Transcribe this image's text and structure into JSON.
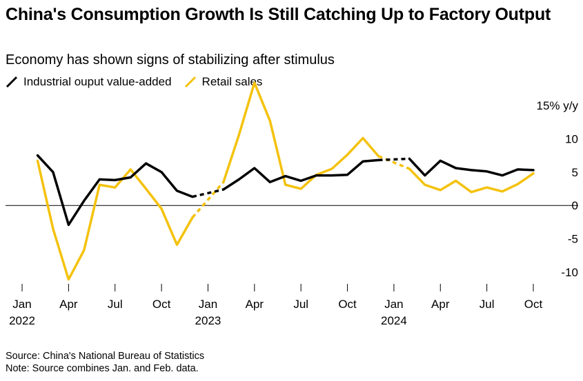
{
  "title": "China's Consumption Growth Is Still Catching Up to Factory Output",
  "subtitle": "Economy has shown signs of stabilizing after stimulus",
  "footer": {
    "source": "Source: China's National Bureau of Statistics",
    "note": "Note: Source combines Jan. and Feb. data."
  },
  "colors": {
    "industrial": "#000000",
    "retail": "#F4C20D",
    "axis": "#000000"
  },
  "chart_data": {
    "type": "line",
    "title": "China's Consumption Growth Is Still Catching Up to Factory Output",
    "subtitle": "Economy has shown signs of stabilizing after stimulus",
    "xlabel": "",
    "ylabel": "% y/y",
    "ylim": [
      -10,
      15
    ],
    "yticks": [
      {
        "value": 15,
        "label": "15% y/y"
      },
      {
        "value": 10,
        "label": "10"
      },
      {
        "value": 5,
        "label": "5"
      },
      {
        "value": 0,
        "label": "0"
      },
      {
        "value": -5,
        "label": "-5"
      },
      {
        "value": -10,
        "label": "-10"
      }
    ],
    "xticks": [
      {
        "month": 0,
        "label": "Jan",
        "year": "2022"
      },
      {
        "month": 3,
        "label": "Apr"
      },
      {
        "month": 6,
        "label": "Jul"
      },
      {
        "month": 9,
        "label": "Oct"
      },
      {
        "month": 12,
        "label": "Jan",
        "year": "2023"
      },
      {
        "month": 15,
        "label": "Apr"
      },
      {
        "month": 18,
        "label": "Jul"
      },
      {
        "month": 21,
        "label": "Oct"
      },
      {
        "month": 24,
        "label": "Jan",
        "year": "2024"
      },
      {
        "month": 27,
        "label": "Apr"
      },
      {
        "month": 30,
        "label": "Jul"
      },
      {
        "month": 33,
        "label": "Oct"
      }
    ],
    "legend_position": "top-left",
    "note": "Jan. and Feb. combined; dashed segments bridge the combined Jan-Feb periods",
    "series": [
      {
        "name": "Industrial ouput value-added",
        "color": "#000000",
        "segments": [
          {
            "style": "solid",
            "points": [
              [
                1,
                7.5
              ],
              [
                2,
                5.0
              ],
              [
                3,
                -2.9
              ],
              [
                4,
                0.7
              ],
              [
                5,
                3.9
              ],
              [
                6,
                3.8
              ],
              [
                7,
                4.2
              ],
              [
                8,
                6.3
              ],
              [
                9,
                5.0
              ],
              [
                10,
                2.2
              ],
              [
                11,
                1.3
              ]
            ]
          },
          {
            "style": "dashed",
            "points": [
              [
                11,
                1.3
              ],
              [
                13,
                2.4
              ]
            ]
          },
          {
            "style": "solid",
            "points": [
              [
                13,
                2.4
              ],
              [
                14,
                3.9
              ],
              [
                15,
                5.6
              ],
              [
                16,
                3.5
              ],
              [
                17,
                4.4
              ],
              [
                18,
                3.7
              ],
              [
                19,
                4.5
              ],
              [
                20,
                4.5
              ],
              [
                21,
                4.6
              ],
              [
                22,
                6.6
              ],
              [
                23,
                6.8
              ]
            ]
          },
          {
            "style": "dashed",
            "points": [
              [
                23,
                6.8
              ],
              [
                25,
                7.0
              ]
            ]
          },
          {
            "style": "solid",
            "points": [
              [
                25,
                7.0
              ],
              [
                26,
                4.5
              ],
              [
                27,
                6.7
              ],
              [
                28,
                5.6
              ],
              [
                29,
                5.3
              ],
              [
                30,
                5.1
              ],
              [
                31,
                4.5
              ],
              [
                32,
                5.4
              ],
              [
                33,
                5.3
              ]
            ]
          }
        ]
      },
      {
        "name": "Retail sales",
        "color": "#F4C20D",
        "segments": [
          {
            "style": "solid",
            "points": [
              [
                1,
                6.7
              ],
              [
                2,
                -3.5
              ],
              [
                3,
                -11.1
              ],
              [
                4,
                -6.7
              ],
              [
                5,
                3.1
              ],
              [
                6,
                2.7
              ],
              [
                7,
                5.4
              ],
              [
                8,
                2.5
              ],
              [
                9,
                -0.5
              ],
              [
                10,
                -5.9
              ],
              [
                11,
                -1.8
              ]
            ]
          },
          {
            "style": "dashed",
            "points": [
              [
                11,
                -1.8
              ],
              [
                13,
                3.5
              ]
            ]
          },
          {
            "style": "solid",
            "points": [
              [
                13,
                3.5
              ],
              [
                14,
                10.6
              ],
              [
                15,
                18.4
              ],
              [
                16,
                12.7
              ],
              [
                17,
                3.1
              ],
              [
                18,
                2.5
              ],
              [
                19,
                4.6
              ],
              [
                20,
                5.5
              ],
              [
                21,
                7.6
              ],
              [
                22,
                10.1
              ],
              [
                23,
                7.4
              ]
            ]
          },
          {
            "style": "dashed",
            "points": [
              [
                23,
                7.4
              ],
              [
                25,
                5.5
              ]
            ]
          },
          {
            "style": "solid",
            "points": [
              [
                25,
                5.5
              ],
              [
                26,
                3.1
              ],
              [
                27,
                2.3
              ],
              [
                28,
                3.7
              ],
              [
                29,
                2.0
              ],
              [
                30,
                2.7
              ],
              [
                31,
                2.1
              ],
              [
                32,
                3.2
              ],
              [
                33,
                4.8
              ]
            ]
          }
        ]
      }
    ]
  }
}
